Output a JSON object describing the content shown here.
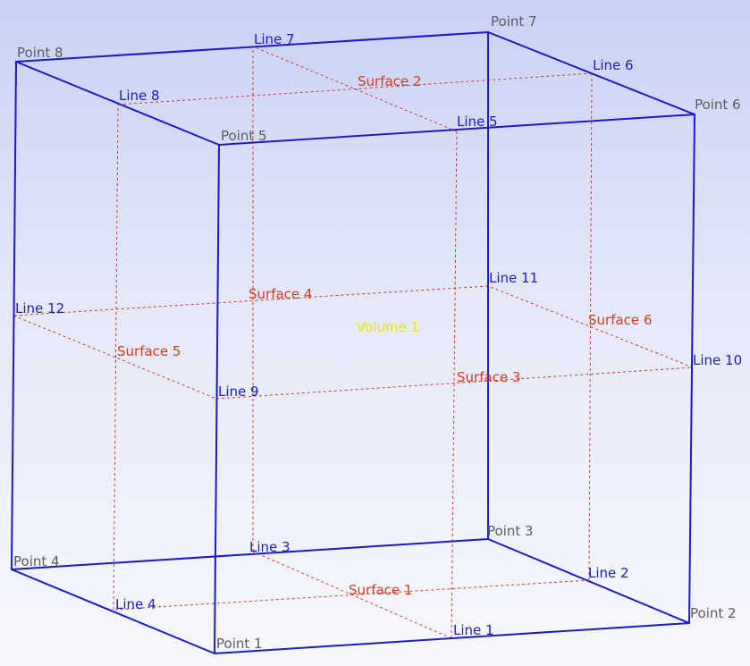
{
  "colors": {
    "edge": "#1a1acc",
    "surface": "#d23a1e",
    "point": "#5c5c5c",
    "volume": "#e8e800"
  },
  "points": [
    {
      "id": "1",
      "label": "Point 1"
    },
    {
      "id": "2",
      "label": "Point 2"
    },
    {
      "id": "3",
      "label": "Point 3"
    },
    {
      "id": "4",
      "label": "Point 4"
    },
    {
      "id": "5",
      "label": "Point 5"
    },
    {
      "id": "6",
      "label": "Point 6"
    },
    {
      "id": "7",
      "label": "Point 7"
    },
    {
      "id": "8",
      "label": "Point 8"
    }
  ],
  "lines": [
    {
      "id": "1",
      "label": "Line 1",
      "from": "1",
      "to": "2"
    },
    {
      "id": "2",
      "label": "Line 2",
      "from": "2",
      "to": "3"
    },
    {
      "id": "3",
      "label": "Line 3",
      "from": "3",
      "to": "4"
    },
    {
      "id": "4",
      "label": "Line 4",
      "from": "4",
      "to": "1"
    },
    {
      "id": "5",
      "label": "Line 5",
      "from": "5",
      "to": "6"
    },
    {
      "id": "6",
      "label": "Line 6",
      "from": "6",
      "to": "7"
    },
    {
      "id": "7",
      "label": "Line 7",
      "from": "7",
      "to": "8"
    },
    {
      "id": "8",
      "label": "Line 8",
      "from": "8",
      "to": "5"
    },
    {
      "id": "9",
      "label": "Line 9",
      "from": "1",
      "to": "5"
    },
    {
      "id": "10",
      "label": "Line 10",
      "from": "2",
      "to": "6"
    },
    {
      "id": "11",
      "label": "Line 11",
      "from": "3",
      "to": "7"
    },
    {
      "id": "12",
      "label": "Line 12",
      "from": "4",
      "to": "8"
    }
  ],
  "surfaces": [
    {
      "id": "1",
      "label": "Surface 1"
    },
    {
      "id": "2",
      "label": "Surface 2"
    },
    {
      "id": "3",
      "label": "Surface 3"
    },
    {
      "id": "4",
      "label": "Surface 4"
    },
    {
      "id": "5",
      "label": "Surface 5"
    },
    {
      "id": "6",
      "label": "Surface 6"
    }
  ],
  "volume": {
    "label": "Volume 1"
  }
}
